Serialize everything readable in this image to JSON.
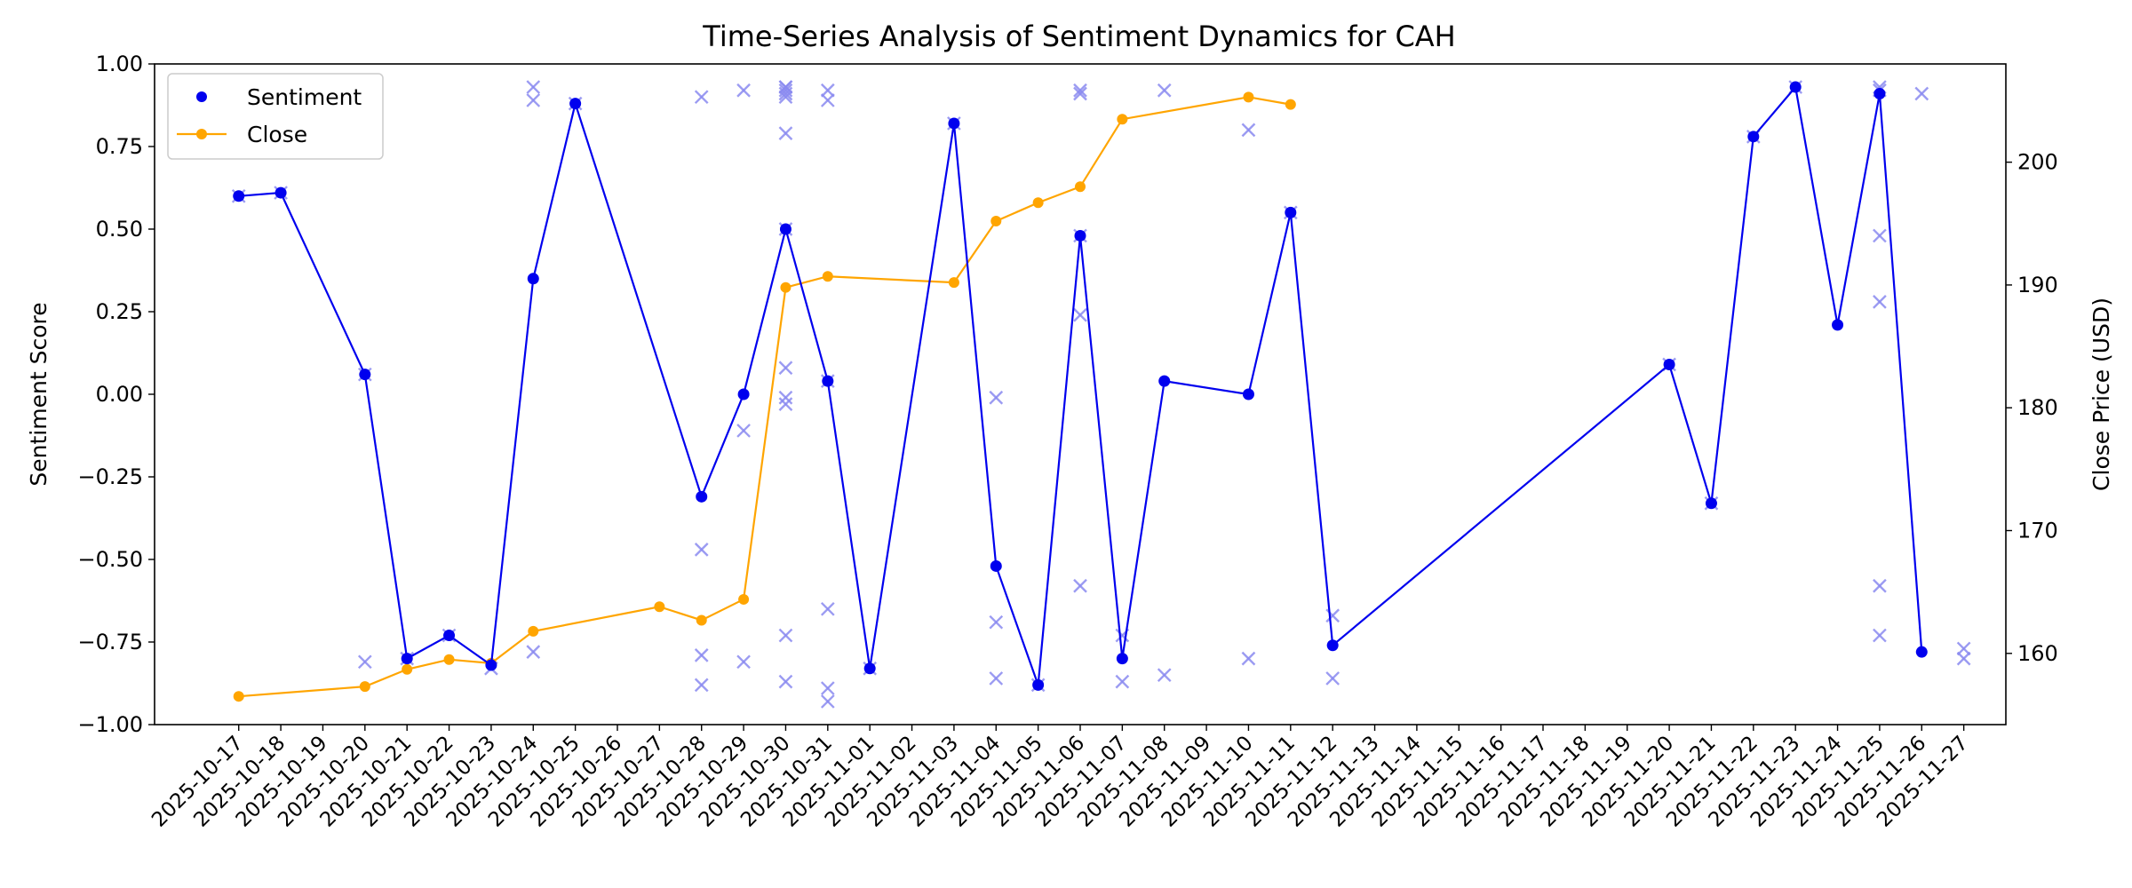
{
  "chart_data": {
    "type": "line",
    "title": "Time-Series Analysis of Sentiment Dynamics for CAH",
    "ylabel_left": "Sentiment Score",
    "ylabel_right": "Close Price (USD)",
    "xlabel": "",
    "x_ticks": [
      "2025-10-17",
      "2025-10-18",
      "2025-10-19",
      "2025-10-20",
      "2025-10-21",
      "2025-10-22",
      "2025-10-23",
      "2025-10-24",
      "2025-10-25",
      "2025-10-26",
      "2025-10-27",
      "2025-10-28",
      "2025-10-29",
      "2025-10-30",
      "2025-10-31",
      "2025-11-01",
      "2025-11-02",
      "2025-11-03",
      "2025-11-04",
      "2025-11-05",
      "2025-11-06",
      "2025-11-07",
      "2025-11-08",
      "2025-11-09",
      "2025-11-10",
      "2025-11-11",
      "2025-11-12",
      "2025-11-13",
      "2025-11-14",
      "2025-11-15",
      "2025-11-16",
      "2025-11-17",
      "2025-11-18",
      "2025-11-19",
      "2025-11-20",
      "2025-11-21",
      "2025-11-22",
      "2025-11-23",
      "2025-11-24",
      "2025-11-25",
      "2025-11-26",
      "2025-11-27"
    ],
    "xlim": [
      "2025-10-15",
      "2025-11-28"
    ],
    "ylim_left": [
      -1.0,
      1.0
    ],
    "ylim_right": [
      154.2,
      208.0
    ],
    "y_ticks_left": [
      "1.00",
      "0.75",
      "0.50",
      "0.25",
      "0.00",
      "−0.25",
      "−0.50",
      "−0.75",
      "−1.00"
    ],
    "y_ticks_left_values": [
      1.0,
      0.75,
      0.5,
      0.25,
      0.0,
      -0.25,
      -0.5,
      -0.75,
      -1.0
    ],
    "y_ticks_right": [
      "200",
      "190",
      "180",
      "170",
      "160"
    ],
    "y_ticks_right_values": [
      200,
      190,
      180,
      170,
      160
    ],
    "legend": {
      "location": "top-left",
      "entries": [
        "Sentiment",
        "Close"
      ]
    },
    "colors": {
      "sentiment": "#0000ee",
      "close": "#ffa500",
      "raw": "#8a8af0"
    },
    "series": [
      {
        "name": "Sentiment",
        "axis": "left",
        "x": [
          "2025-10-17",
          "2025-10-18",
          "2025-10-20",
          "2025-10-21",
          "2025-10-22",
          "2025-10-23",
          "2025-10-24",
          "2025-10-25",
          "2025-10-28",
          "2025-10-29",
          "2025-10-30",
          "2025-10-31",
          "2025-11-01",
          "2025-11-03",
          "2025-11-04",
          "2025-11-05",
          "2025-11-06",
          "2025-11-07",
          "2025-11-08",
          "2025-11-10",
          "2025-11-11",
          "2025-11-12",
          "2025-11-20",
          "2025-11-21",
          "2025-11-22",
          "2025-11-23",
          "2025-11-24",
          "2025-11-25",
          "2025-11-26"
        ],
        "y": [
          0.6,
          0.61,
          0.06,
          -0.8,
          -0.73,
          -0.82,
          0.35,
          0.88,
          -0.31,
          0.0,
          0.5,
          0.04,
          -0.83,
          0.82,
          -0.52,
          -0.88,
          0.48,
          -0.8,
          0.04,
          0.0,
          0.55,
          -0.76,
          0.09,
          -0.33,
          0.78,
          0.93,
          0.21,
          0.91,
          -0.78
        ]
      },
      {
        "name": "Close",
        "axis": "right",
        "x": [
          "2025-10-17",
          "2025-10-20",
          "2025-10-21",
          "2025-10-22",
          "2025-10-23",
          "2025-10-24",
          "2025-10-27",
          "2025-10-28",
          "2025-10-29",
          "2025-10-30",
          "2025-10-31",
          "2025-11-03",
          "2025-11-04",
          "2025-11-05",
          "2025-11-06",
          "2025-11-07",
          "2025-11-10",
          "2025-11-11"
        ],
        "y": [
          156.5,
          157.3,
          158.7,
          159.5,
          159.2,
          161.8,
          163.8,
          162.7,
          164.4,
          189.8,
          190.7,
          190.2,
          195.2,
          196.7,
          198.0,
          203.5,
          205.3,
          204.7
        ]
      },
      {
        "name": "",
        "marker": "x",
        "axis": "left",
        "x": [
          "2025-10-17",
          "2025-10-18",
          "2025-10-20",
          "2025-10-20",
          "2025-10-21",
          "2025-10-22",
          "2025-10-23",
          "2025-10-24",
          "2025-10-24",
          "2025-10-24",
          "2025-10-25",
          "2025-10-28",
          "2025-10-28",
          "2025-10-28",
          "2025-10-28",
          "2025-10-29",
          "2025-10-29",
          "2025-10-29",
          "2025-10-30",
          "2025-10-30",
          "2025-10-30",
          "2025-10-30",
          "2025-10-30",
          "2025-10-30",
          "2025-10-30",
          "2025-10-30",
          "2025-10-30",
          "2025-10-30",
          "2025-10-30",
          "2025-10-30",
          "2025-10-31",
          "2025-10-31",
          "2025-10-31",
          "2025-10-31",
          "2025-10-31",
          "2025-10-31",
          "2025-11-01",
          "2025-11-03",
          "2025-11-04",
          "2025-11-04",
          "2025-11-04",
          "2025-11-05",
          "2025-11-06",
          "2025-11-06",
          "2025-11-06",
          "2025-11-06",
          "2025-11-06",
          "2025-11-07",
          "2025-11-07",
          "2025-11-08",
          "2025-11-08",
          "2025-11-10",
          "2025-11-10",
          "2025-11-11",
          "2025-11-12",
          "2025-11-12",
          "2025-11-20",
          "2025-11-21",
          "2025-11-22",
          "2025-11-23",
          "2025-11-25",
          "2025-11-25",
          "2025-11-25",
          "2025-11-25",
          "2025-11-25",
          "2025-11-25",
          "2025-11-26",
          "2025-11-27",
          "2025-11-27"
        ],
        "y": [
          0.6,
          0.61,
          0.06,
          -0.81,
          -0.8,
          -0.73,
          -0.83,
          0.93,
          0.89,
          -0.78,
          0.88,
          0.9,
          -0.47,
          -0.79,
          -0.88,
          0.92,
          -0.11,
          -0.81,
          0.93,
          0.92,
          0.9,
          0.79,
          0.08,
          -0.01,
          -0.03,
          0.5,
          -0.73,
          -0.87,
          0.93,
          0.91,
          0.92,
          0.89,
          0.04,
          -0.65,
          -0.89,
          -0.93,
          -0.83,
          0.82,
          -0.01,
          -0.69,
          -0.86,
          -0.88,
          0.92,
          0.91,
          0.48,
          0.24,
          -0.58,
          -0.73,
          -0.87,
          0.92,
          -0.85,
          0.8,
          -0.8,
          0.55,
          -0.67,
          -0.86,
          0.09,
          -0.33,
          0.78,
          0.93,
          0.93,
          0.92,
          0.48,
          0.28,
          -0.58,
          -0.73,
          0.91,
          -0.77,
          -0.8
        ]
      }
    ]
  }
}
